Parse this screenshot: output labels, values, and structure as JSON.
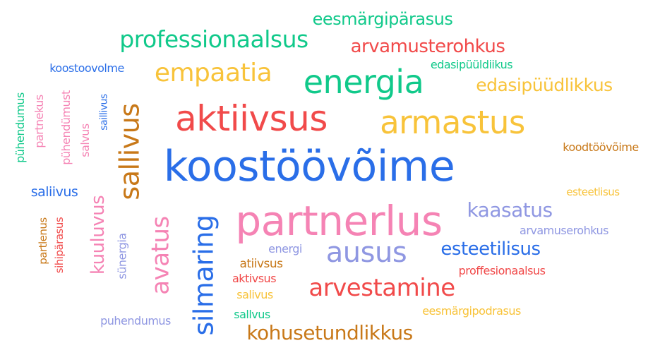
{
  "colors": {
    "green": "#10c98a",
    "red": "#f14a4a",
    "blue": "#2a6ee8",
    "orange": "#f8c33a",
    "pink": "#f583b4",
    "brown": "#c87818",
    "lavender": "#8f97e2"
  },
  "words": [
    {
      "text": "eesmärgipärasus",
      "color": "green",
      "weight": 4,
      "vertical": false
    },
    {
      "text": "professionaalsus",
      "color": "green",
      "weight": 6,
      "vertical": false
    },
    {
      "text": "arvamusterohkus",
      "color": "red",
      "weight": 5,
      "vertical": false
    },
    {
      "text": "koostoovolme",
      "color": "blue",
      "weight": 2,
      "vertical": false
    },
    {
      "text": "empaatia",
      "color": "orange",
      "weight": 6,
      "vertical": false
    },
    {
      "text": "energia",
      "color": "green",
      "weight": 8,
      "vertical": false
    },
    {
      "text": "edasipüüldiikus",
      "color": "green",
      "weight": 2,
      "vertical": false
    },
    {
      "text": "edasipüüdlikkus",
      "color": "orange",
      "weight": 4,
      "vertical": false
    },
    {
      "text": "pühendumus",
      "color": "green",
      "weight": 2,
      "vertical": true
    },
    {
      "text": "partnekus",
      "color": "pink",
      "weight": 2,
      "vertical": true
    },
    {
      "text": "pühendümust",
      "color": "pink",
      "weight": 2,
      "vertical": true
    },
    {
      "text": "salvus",
      "color": "pink",
      "weight": 2,
      "vertical": true
    },
    {
      "text": "saillivus",
      "color": "blue",
      "weight": 2,
      "vertical": true
    },
    {
      "text": "sallivus",
      "color": "brown",
      "weight": 7,
      "vertical": true
    },
    {
      "text": "aktiivsus",
      "color": "red",
      "weight": 9,
      "vertical": false
    },
    {
      "text": "armastus",
      "color": "orange",
      "weight": 8,
      "vertical": false
    },
    {
      "text": "koodtöövõime",
      "color": "brown",
      "weight": 2,
      "vertical": false
    },
    {
      "text": "koostöövõime",
      "color": "blue",
      "weight": 10,
      "vertical": false
    },
    {
      "text": "saliivus",
      "color": "blue",
      "weight": 3,
      "vertical": false
    },
    {
      "text": "esteetlisus",
      "color": "orange",
      "weight": 2,
      "vertical": false
    },
    {
      "text": "kuuluvus",
      "color": "pink",
      "weight": 5,
      "vertical": true
    },
    {
      "text": "avatus",
      "color": "pink",
      "weight": 7,
      "vertical": true
    },
    {
      "text": "silmaring",
      "color": "blue",
      "weight": 7,
      "vertical": true
    },
    {
      "text": "partnerlus",
      "color": "pink",
      "weight": 10,
      "vertical": false
    },
    {
      "text": "kaasatus",
      "color": "lavender",
      "weight": 5,
      "vertical": false
    },
    {
      "text": "arvamuserohkus",
      "color": "lavender",
      "weight": 2,
      "vertical": false
    },
    {
      "text": "partlenus",
      "color": "brown",
      "weight": 2,
      "vertical": true
    },
    {
      "text": "sihipärasus",
      "color": "red",
      "weight": 2,
      "vertical": true
    },
    {
      "text": "sünergia",
      "color": "lavender",
      "weight": 2,
      "vertical": true
    },
    {
      "text": "energi",
      "color": "lavender",
      "weight": 2,
      "vertical": false
    },
    {
      "text": "ausus",
      "color": "lavender",
      "weight": 8,
      "vertical": false
    },
    {
      "text": "esteetilisus",
      "color": "blue",
      "weight": 5,
      "vertical": false
    },
    {
      "text": "atiivsus",
      "color": "brown",
      "weight": 2,
      "vertical": false
    },
    {
      "text": "proffesionaalsus",
      "color": "red",
      "weight": 2,
      "vertical": false
    },
    {
      "text": "aktivsus",
      "color": "red",
      "weight": 2,
      "vertical": false
    },
    {
      "text": "arvestamine",
      "color": "red",
      "weight": 6,
      "vertical": false
    },
    {
      "text": "salivus",
      "color": "orange",
      "weight": 2,
      "vertical": false
    },
    {
      "text": "eesmärgipodrasus",
      "color": "orange",
      "weight": 2,
      "vertical": false
    },
    {
      "text": "puhendumus",
      "color": "lavender",
      "weight": 2,
      "vertical": false
    },
    {
      "text": "sallvus",
      "color": "green",
      "weight": 2,
      "vertical": false
    },
    {
      "text": "kohusetundlikkus",
      "color": "brown",
      "weight": 5,
      "vertical": false
    }
  ]
}
